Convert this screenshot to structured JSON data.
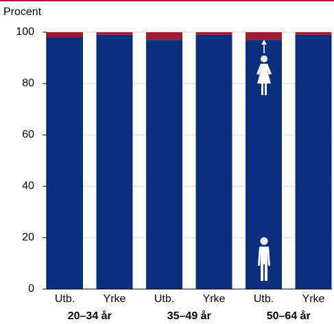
{
  "chart_data": {
    "type": "stacked_bar",
    "y_label": "Procent",
    "categories": [
      "Utb.",
      "Yrke",
      "Utb.",
      "Yrke",
      "Utb.",
      "Yrke"
    ],
    "groups": [
      "20–34 år",
      "35–49 år",
      "50–64 år"
    ],
    "series": [
      {
        "color": "#0a2f7f",
        "values": [
          98,
          99,
          97,
          99,
          97,
          99
        ]
      },
      {
        "color": "#9e1b32",
        "values": [
          2,
          1,
          3,
          1,
          3,
          1
        ]
      }
    ],
    "ylim": [
      0,
      100
    ],
    "yticks": [
      0,
      20,
      40,
      60,
      80,
      100
    ],
    "grid": true
  }
}
